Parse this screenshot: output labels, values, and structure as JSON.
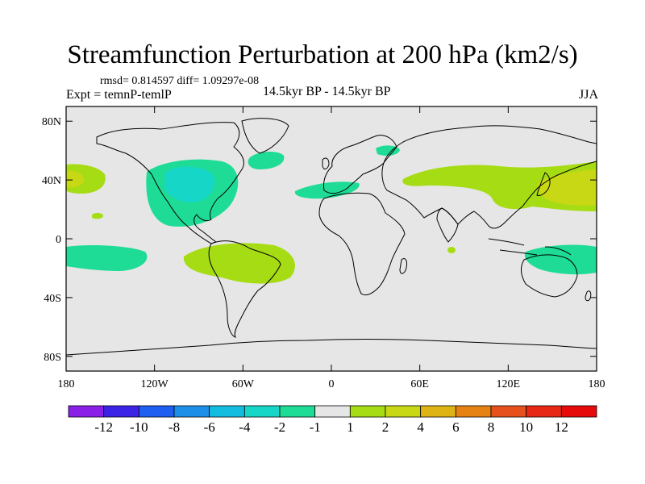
{
  "title": "Streamfunction Perturbation at 200 hPa (km2/s)",
  "stats": "rmsd= 0.814597 diff= 1.09297e-08",
  "expt": "Expt = temnP-temlP",
  "period": "14.5kyr BP - 14.5kyr BP",
  "season": "JJA",
  "map": {
    "lat_ticks": [
      "80N",
      "40N",
      "0",
      "40S",
      "80S"
    ],
    "lat_values": [
      80,
      40,
      0,
      -40,
      -80
    ],
    "lon_ticks": [
      "180",
      "120W",
      "60W",
      "0",
      "60E",
      "120E",
      "180"
    ],
    "lon_values": [
      -180,
      -120,
      -60,
      0,
      60,
      120,
      180
    ],
    "lat_range": [
      -90,
      90
    ],
    "lon_range": [
      -180,
      180
    ],
    "background_color": "#e6e6e6"
  },
  "colorbar": {
    "labels": [
      "-12",
      "-10",
      "-8",
      "-6",
      "-4",
      "-2",
      "-1",
      "1",
      "2",
      "4",
      "6",
      "8",
      "10",
      "12"
    ],
    "colors": [
      "#8a20e8",
      "#3b24e6",
      "#1e5ef0",
      "#1e8fe8",
      "#12bde0",
      "#16d6c8",
      "#1edc96",
      "#e6e6e6",
      "#a6dc14",
      "#c8d814",
      "#deb414",
      "#e68214",
      "#e6501c",
      "#e62814",
      "#e60a0a"
    ]
  }
}
